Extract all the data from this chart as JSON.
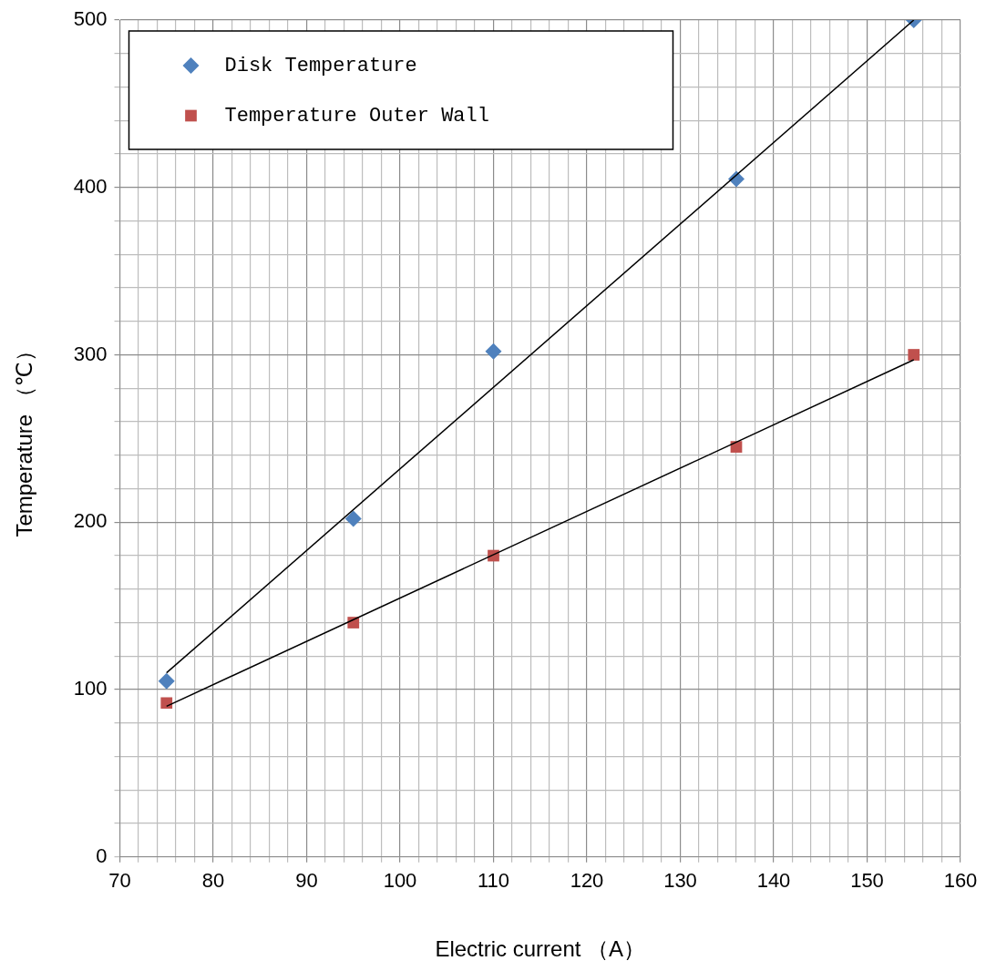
{
  "chart_data": {
    "type": "scatter",
    "xlabel": "Electric current （A）",
    "ylabel": "Temperature （℃）",
    "series": [
      {
        "name": "Disk Temperature",
        "color": "#4f81bd",
        "marker": "diamond",
        "x": [
          75,
          95,
          110,
          136,
          155
        ],
        "values": [
          105,
          202,
          302,
          405,
          500
        ]
      },
      {
        "name": "Temperature Outer Wall",
        "color": "#c0504d",
        "marker": "square",
        "x": [
          75,
          95,
          110,
          136,
          155
        ],
        "values": [
          92,
          140,
          180,
          245,
          300
        ]
      },
      {
        "type": "line",
        "color": "#000000",
        "marker": "none",
        "x": [
          75,
          155
        ],
        "values": [
          110,
          500
        ]
      },
      {
        "type": "line",
        "color": "#000000",
        "marker": "none",
        "x": [
          75,
          155
        ],
        "values": [
          90,
          297
        ]
      }
    ],
    "xlim": [
      70,
      160
    ],
    "ylim": [
      0,
      500
    ],
    "xticks": [
      70,
      {
        "value": 72,
        "label": null
      },
      {
        "value": 74,
        "label": null
      },
      {
        "value": 76,
        "label": null
      },
      {
        "value": 78,
        "label": null
      },
      80,
      {
        "value": 82,
        "label": null
      },
      {
        "value": 84,
        "label": null
      },
      {
        "value": 86,
        "label": null
      },
      {
        "value": 88,
        "label": null
      },
      90,
      {
        "value": 92,
        "label": null
      },
      {
        "value": 94,
        "label": null
      },
      {
        "value": 96,
        "label": null
      },
      {
        "value": 98,
        "label": null
      },
      100,
      {
        "value": 102,
        "label": null
      },
      {
        "value": 104,
        "label": null
      },
      {
        "value": 106,
        "label": null
      },
      {
        "value": 108,
        "label": null
      },
      110,
      {
        "value": 112,
        "label": null
      },
      {
        "value": 114,
        "label": null
      },
      {
        "value": 116,
        "label": null
      },
      {
        "value": 118,
        "label": null
      },
      120,
      {
        "value": 122,
        "label": null
      },
      {
        "value": 124,
        "label": null
      },
      {
        "value": 126,
        "label": null
      },
      {
        "value": 128,
        "label": null
      },
      130,
      {
        "value": 132,
        "label": null
      },
      {
        "value": 134,
        "label": null
      },
      {
        "value": 136,
        "label": null
      },
      {
        "value": 138,
        "label": null
      },
      140,
      {
        "value": 142,
        "label": null
      },
      {
        "value": 144,
        "label": null
      },
      {
        "value": 146,
        "label": null
      },
      {
        "value": 148,
        "label": null
      },
      150,
      {
        "value": 152,
        "label": null
      },
      {
        "value": 154,
        "label": null
      },
      {
        "value": 156,
        "label": null
      },
      {
        "value": 158,
        "label": null
      },
      160
    ],
    "yticks": [
      0,
      {
        "value": 20,
        "label": null
      },
      {
        "value": 40,
        "label": null
      },
      {
        "value": 60,
        "label": null
      },
      {
        "value": 80,
        "label": null
      },
      100,
      {
        "value": 120,
        "label": null
      },
      {
        "value": 140,
        "label": null
      },
      {
        "value": 160,
        "label": null
      },
      {
        "value": 180,
        "label": null
      },
      200,
      {
        "value": 220,
        "label": null
      },
      {
        "value": 240,
        "label": null
      },
      {
        "value": 260,
        "label": null
      },
      {
        "value": 280,
        "label": null
      },
      300,
      {
        "value": 320,
        "label": null
      },
      {
        "value": 340,
        "label": null
      },
      {
        "value": 360,
        "label": null
      },
      {
        "value": 380,
        "label": null
      },
      400,
      {
        "value": 420,
        "label": null
      },
      {
        "value": 440,
        "label": null
      },
      {
        "value": 460,
        "label": null
      },
      {
        "value": 480,
        "label": null
      },
      500
    ],
    "grid": true,
    "legend": "top left"
  }
}
